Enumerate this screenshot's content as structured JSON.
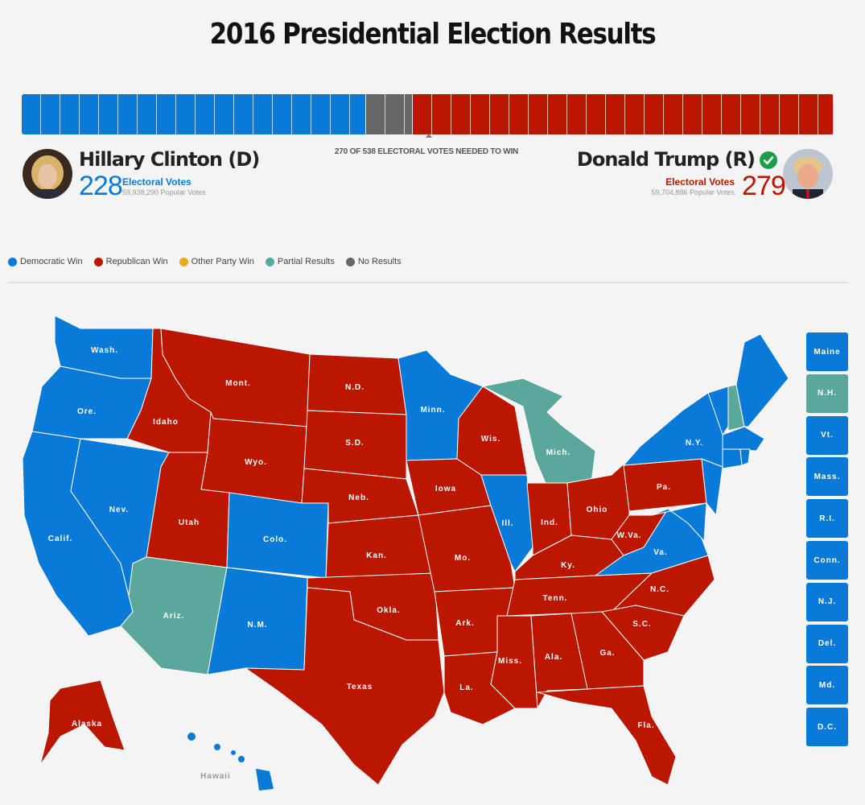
{
  "title": "2016 Presidential Election Results",
  "threshold_text": "270 OF 538 ELECTORAL VOTES NEEDED TO WIN",
  "colors": {
    "dem": "#0a7ad8",
    "rep": "#bb1700",
    "other": "#e8aa1a",
    "partial": "#5aa89b",
    "none": "#666666"
  },
  "bar": {
    "dem": 228,
    "none": 31,
    "rep": 279,
    "total": 538,
    "threshold": 270
  },
  "clinton": {
    "name": "Hillary Clinton (D)",
    "ev": "228",
    "ev_label": "Electoral Votes",
    "popular": "59,938,290 Popular Votes"
  },
  "trump": {
    "name": "Donald Trump (R)",
    "ev": "279",
    "ev_label": "Electoral Votes",
    "popular": "59,704,886 Popular Votes"
  },
  "legend": [
    {
      "label": "Democratic Win",
      "color": "#0a7ad8"
    },
    {
      "label": "Republican Win",
      "color": "#bb1700"
    },
    {
      "label": "Other Party Win",
      "color": "#e8aa1a"
    },
    {
      "label": "Partial Results",
      "color": "#5aa89b"
    },
    {
      "label": "No Results",
      "color": "#666666"
    }
  ],
  "small_states": [
    {
      "label": "Maine",
      "status": "dem"
    },
    {
      "label": "N.H.",
      "status": "partial"
    },
    {
      "label": "Vt.",
      "status": "dem"
    },
    {
      "label": "Mass.",
      "status": "dem"
    },
    {
      "label": "R.I.",
      "status": "dem"
    },
    {
      "label": "Conn.",
      "status": "dem"
    },
    {
      "label": "N.J.",
      "status": "dem"
    },
    {
      "label": "Del.",
      "status": "dem"
    },
    {
      "label": "Md.",
      "status": "dem"
    },
    {
      "label": "D.C.",
      "status": "dem"
    }
  ],
  "map_labels": {
    "wash": "Wash.",
    "ore": "Ore.",
    "calif": "Calif.",
    "nev": "Nev.",
    "idaho": "Idaho",
    "mont": "Mont.",
    "wyo": "Wyo.",
    "utah": "Utah",
    "colo": "Colo.",
    "ariz": "Ariz.",
    "nm": "N.M.",
    "nd": "N.D.",
    "sd": "S.D.",
    "neb": "Neb.",
    "kan": "Kan.",
    "okla": "Okla.",
    "texas": "Texas",
    "minn": "Minn.",
    "iowa": "Iowa",
    "mo": "Mo.",
    "ark": "Ark.",
    "la": "La.",
    "wis": "Wis.",
    "ill": "Ill.",
    "mich": "Mich.",
    "ind": "Ind.",
    "ohio": "Ohio",
    "ky": "Ky.",
    "tenn": "Tenn.",
    "miss": "Miss.",
    "ala": "Ala.",
    "ga": "Ga.",
    "fla": "Fla.",
    "sc": "S.C.",
    "nc": "N.C.",
    "va": "Va.",
    "wva": "W.Va.",
    "pa": "Pa.",
    "ny": "N.Y.",
    "alaska": "Alaska",
    "hawaii": "Hawaii"
  }
}
